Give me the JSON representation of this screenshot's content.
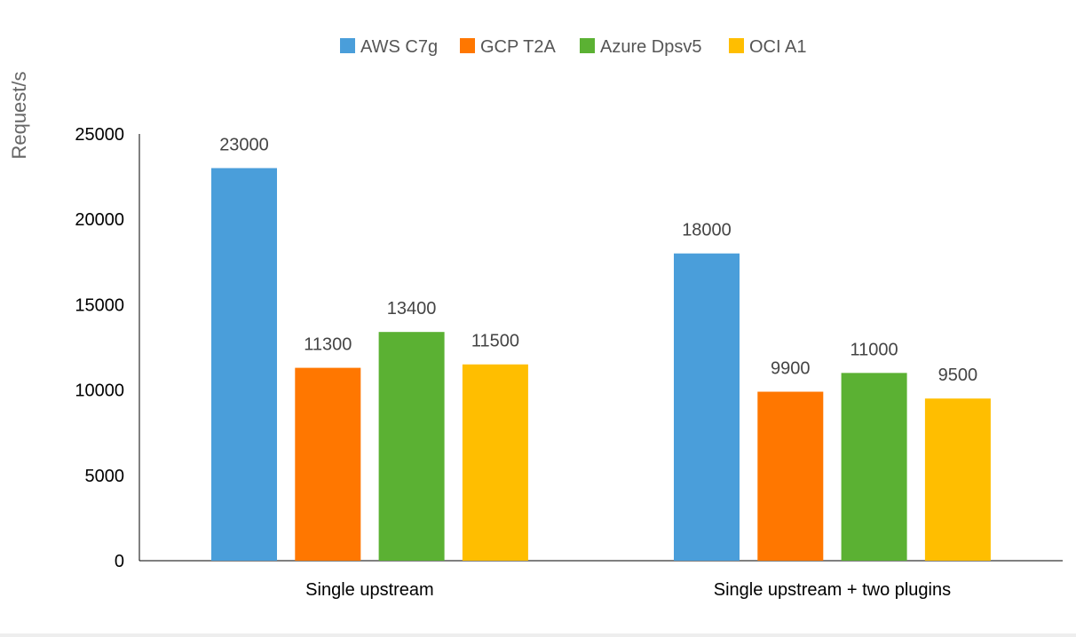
{
  "chart_data": {
    "type": "bar",
    "title": "",
    "xlabel": "",
    "ylabel": "Request/s",
    "ylim": [
      0,
      25000
    ],
    "yticks": [
      0,
      5000,
      10000,
      15000,
      20000,
      25000
    ],
    "grid": false,
    "legend_position": "top",
    "categories": [
      "Single upstream",
      "Single upstream + two plugins"
    ],
    "series": [
      {
        "name": "AWS C7g",
        "color": "#4A9EDA",
        "values": [
          23000,
          18000
        ]
      },
      {
        "name": "GCP T2A",
        "color": "#FF7700",
        "values": [
          11300,
          9900
        ]
      },
      {
        "name": "Azure Dpsv5",
        "color": "#5BB133",
        "values": [
          13400,
          11000
        ]
      },
      {
        "name": "OCI A1",
        "color": "#FFBE00",
        "values": [
          11500,
          9500
        ]
      }
    ]
  }
}
